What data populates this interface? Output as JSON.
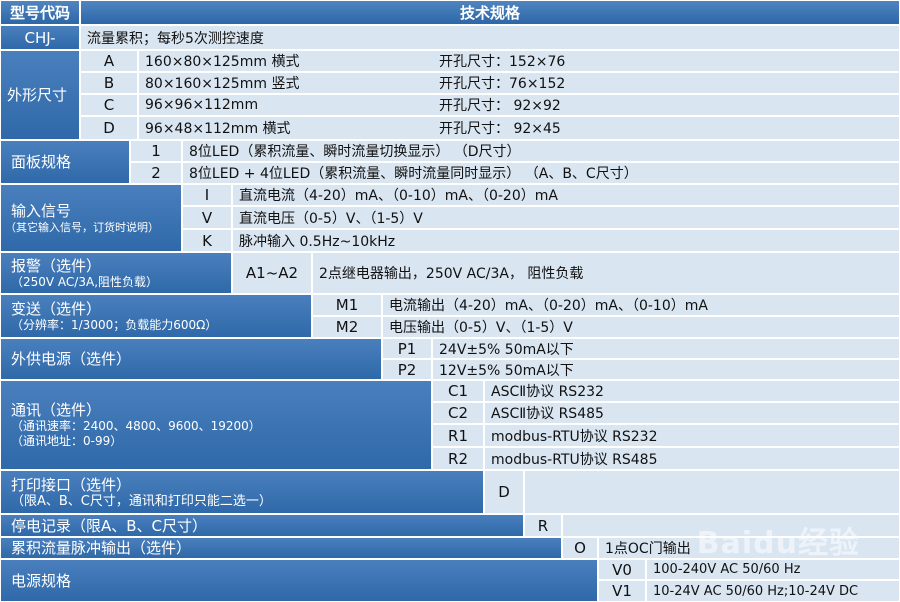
{
  "header": {
    "model_code": "型号代码",
    "spec": "技术规格"
  },
  "chj": {
    "code": "CHJ-",
    "desc": "流量累积；每秒5次测控速度"
  },
  "shape": {
    "label": "外形尺寸",
    "rows": [
      {
        "code": "A",
        "size": "160×80×125mm 横式",
        "hole": "开孔尺寸：152×76"
      },
      {
        "code": "B",
        "size": "80×160×125mm 竖式",
        "hole": "开孔尺寸：76×152"
      },
      {
        "code": "C",
        "size": "96×96×112mm",
        "hole": "开孔尺寸： 92×92"
      },
      {
        "code": "D",
        "size": "96×48×112mm 横式",
        "hole": "开孔尺寸： 92×45"
      }
    ]
  },
  "panel": {
    "label": "面板规格",
    "rows": [
      {
        "code": "1",
        "desc": "8位LED（累积流量、瞬时流量切换显示） （D尺寸）"
      },
      {
        "code": "2",
        "desc": "8位LED + 4位LED（累积流量、瞬时流量同时显示） （A、B、C尺寸）"
      }
    ]
  },
  "input": {
    "label": "输入信号",
    "sub": "（其它输入信号，订货时说明）",
    "rows": [
      {
        "code": "I",
        "desc": "直流电流（4-20）mA、（0-10）mA、（0-20）mA"
      },
      {
        "code": "V",
        "desc": "直流电压（0-5）V、（1-5）V"
      },
      {
        "code": "K",
        "desc": "脉冲输入 0.5Hz~10kHz"
      }
    ]
  },
  "alarm": {
    "label": "报警（选件）",
    "sub": "（250V AC/3A,阻性负载）",
    "code": "A1~A2",
    "desc": "2点继电器输出，250V AC/3A， 阻性负载"
  },
  "transmit": {
    "label": "变送（选件）",
    "sub": "（分辨率：1/3000；负载能力600Ω）",
    "rows": [
      {
        "code": "M1",
        "desc": "电流输出（4-20）mA、（0-20）mA、（0-10）mA"
      },
      {
        "code": "M2",
        "desc": "电压输出（0-5）V、（1-5）V"
      }
    ]
  },
  "power_out": {
    "label": "外供电源（选件）",
    "rows": [
      {
        "code": "P1",
        "desc": "24V±5%  50mA以下"
      },
      {
        "code": "P2",
        "desc": "12V±5%  50mA以下"
      }
    ]
  },
  "comm": {
    "label": "通讯（选件）",
    "sub1": "（通讯速率：2400、4800、9600、19200）",
    "sub2": "（通讯地址：0-99）",
    "rows": [
      {
        "code": "C1",
        "desc": "ASCⅡ协议 RS232"
      },
      {
        "code": "C2",
        "desc": "ASCⅡ协议 RS485"
      },
      {
        "code": "R1",
        "desc": "modbus-RTU协议 RS232"
      },
      {
        "code": "R2",
        "desc": "modbus-RTU协议 RS485"
      }
    ]
  },
  "printer": {
    "label": "打印接口（选件）",
    "sub": "（限A、B、C尺寸，通讯和打印只能二选一）",
    "code": "D"
  },
  "outage": {
    "label": "停电记录（限A、B、C尺寸）",
    "code": "R"
  },
  "pulse_out": {
    "label": "累积流量脉冲输出（选件）",
    "code": "O",
    "desc": "1点OC门输出"
  },
  "supply": {
    "label": "电源规格",
    "rows": [
      {
        "code": "V0",
        "desc": "100-240V AC 50/60 Hz"
      },
      {
        "code": "V1",
        "desc": "10-24V AC 50/60 Hz;10-24V DC"
      }
    ]
  },
  "watermark": "Baidu经验"
}
